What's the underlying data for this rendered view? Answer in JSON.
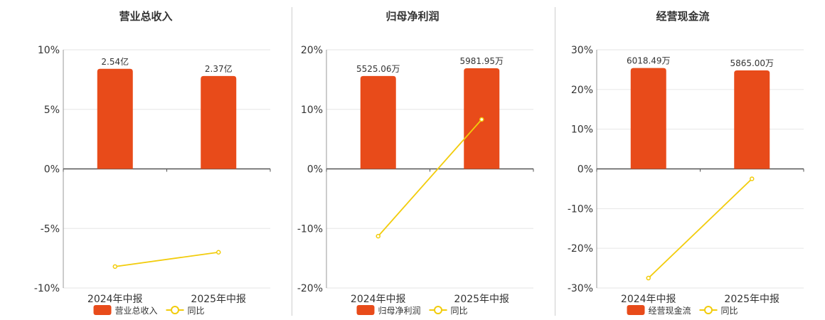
{
  "colors": {
    "bar": "#e84b1a",
    "line": "#f2cc0c",
    "grid": "#e6e6e6",
    "axis": "#555555"
  },
  "chart_data": [
    {
      "type": "bar",
      "title": "营业总收入",
      "categories": [
        "2024年中报",
        "2025年中报"
      ],
      "series": [
        {
          "name": "营业总收入",
          "type": "bar",
          "values": [
            8.4,
            7.8
          ],
          "labels": [
            "2.54亿",
            "2.37亿"
          ]
        },
        {
          "name": "同比",
          "type": "line",
          "values": [
            -8.2,
            -7.0
          ]
        }
      ],
      "ylim": [
        -10,
        10
      ],
      "yticks": [
        "10%",
        "5%",
        "0%",
        "-5%",
        "-10%"
      ],
      "legend": "bottom"
    },
    {
      "type": "bar",
      "title": "归母净利润",
      "categories": [
        "2024年中报",
        "2025年中报"
      ],
      "series": [
        {
          "name": "归母净利润",
          "type": "bar",
          "values": [
            15.6,
            16.9
          ],
          "labels": [
            "5525.06万",
            "5981.95万"
          ]
        },
        {
          "name": "同比",
          "type": "line",
          "values": [
            -11.3,
            8.3
          ]
        }
      ],
      "ylim": [
        -20,
        20
      ],
      "yticks": [
        "20%",
        "10%",
        "0%",
        "-10%",
        "-20%"
      ],
      "legend": "bottom"
    },
    {
      "type": "bar",
      "title": "经营现金流",
      "categories": [
        "2024年中报",
        "2025年中报"
      ],
      "series": [
        {
          "name": "经营现金流",
          "type": "bar",
          "values": [
            25.4,
            24.8
          ],
          "labels": [
            "6018.49万",
            "5865.00万"
          ]
        },
        {
          "name": "同比",
          "type": "line",
          "values": [
            -27.5,
            -2.5
          ]
        }
      ],
      "ylim": [
        -30,
        30
      ],
      "yticks": [
        "30%",
        "20%",
        "10%",
        "0%",
        "-10%",
        "-20%",
        "-30%"
      ],
      "legend": "bottom"
    }
  ]
}
